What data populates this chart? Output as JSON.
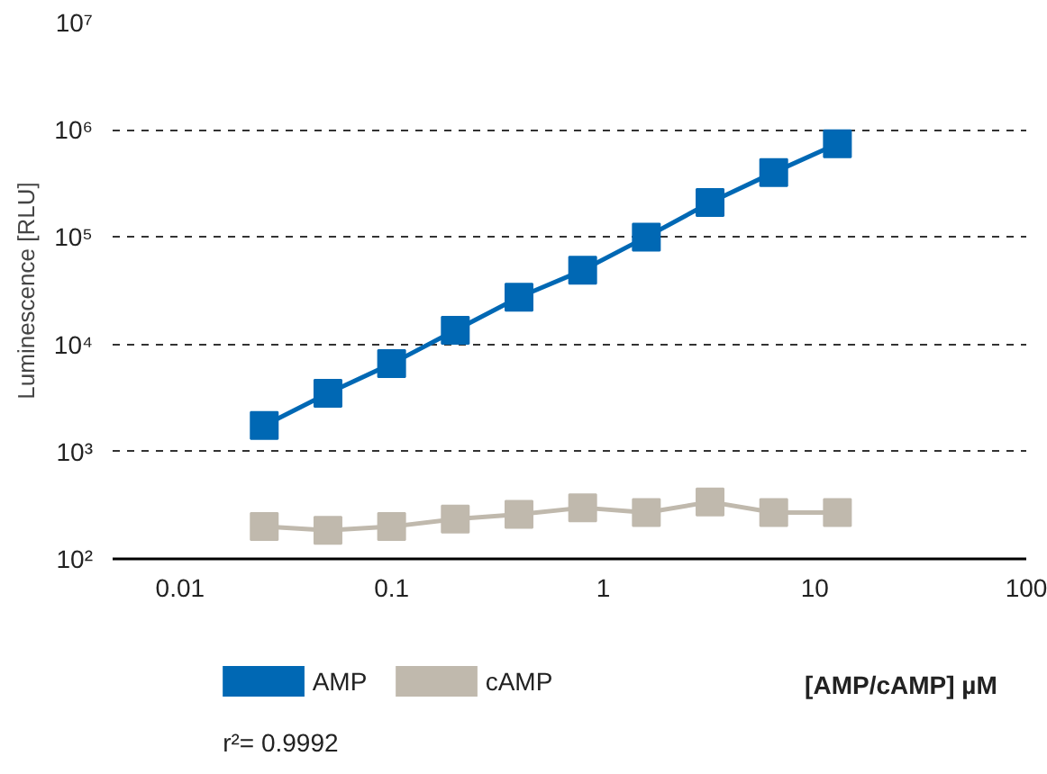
{
  "chart_data": {
    "type": "line",
    "xlabel": "[AMP/cAMP]  µM",
    "ylabel": "Luminescence [RLU]",
    "x": [
      0.025,
      0.05,
      0.1,
      0.2,
      0.4,
      0.8,
      1.6,
      3.2,
      6.4,
      12.8
    ],
    "series": [
      {
        "name": "AMP",
        "color": "#0068b4",
        "values": [
          1750,
          3500,
          6600,
          13500,
          27500,
          49000,
          100000,
          210000,
          400000,
          740000
        ]
      },
      {
        "name": "cAMP",
        "color": "#c0b9ad",
        "values": [
          200,
          185,
          200,
          235,
          260,
          300,
          270,
          340,
          270,
          270
        ]
      }
    ],
    "log": "xy",
    "xlim": [
      0.0048,
      100
    ],
    "ylim": [
      100,
      10000000
    ],
    "xticks": [
      0.01,
      0.1,
      1,
      10,
      100
    ],
    "yticks": [
      {
        "value": 100,
        "label": "10²"
      },
      {
        "value": 1000,
        "label": "10³"
      },
      {
        "value": 10000,
        "label": "10⁴"
      },
      {
        "value": 100000,
        "label": "10⁵"
      },
      {
        "value": 1000000,
        "label": "10⁶"
      },
      {
        "value": 10000000,
        "label": "10⁷"
      }
    ],
    "grid": "y",
    "legend": "bottom left",
    "marker": "square",
    "line_style": "solid",
    "annotations": [
      "r²= 0.9992"
    ]
  }
}
